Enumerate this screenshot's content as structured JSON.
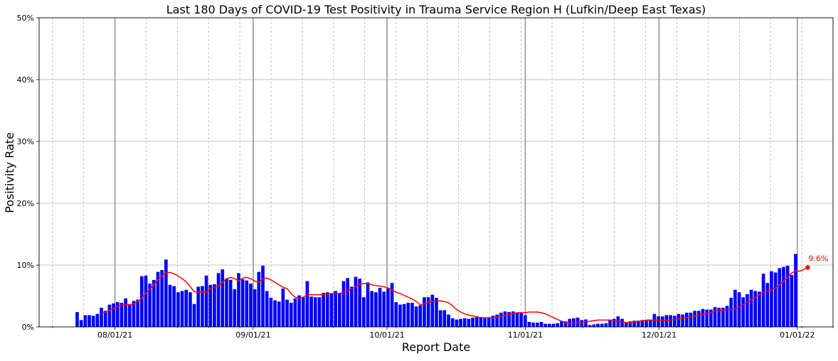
{
  "chart_data": {
    "type": "bar",
    "title": "Last 180 Days of COVID-19 Test Positivity in Trauma Service Region H (Lufkin/Deep East Texas)",
    "xlabel": "Report Date",
    "ylabel": "Positivity Rate",
    "ylim": [
      0,
      50
    ],
    "yticks": [
      0,
      10,
      20,
      30,
      40,
      50
    ],
    "ytick_labels": [
      "0%",
      "10%",
      "20%",
      "30%",
      "40%",
      "50%"
    ],
    "x_start": "2021-07-15",
    "x_end": "2022-01-09",
    "xticks": [
      {
        "date": "2021-08-01",
        "label": "08/01/21"
      },
      {
        "date": "2021-09-01",
        "label": "09/01/21"
      },
      {
        "date": "2021-10-01",
        "label": "10/01/21"
      },
      {
        "date": "2021-11-01",
        "label": "11/01/21"
      },
      {
        "date": "2021-12-01",
        "label": "12/01/21"
      },
      {
        "date": "2022-01-01",
        "label": "01/01/22"
      }
    ],
    "grid": true,
    "series": [
      {
        "type": "bar",
        "color": "#0000ff",
        "values": [
          2.4,
          1.1,
          1.9,
          1.9,
          1.8,
          2.1,
          3.1,
          2.6,
          3.6,
          3.8,
          4.0,
          3.9,
          4.6,
          3.6,
          4.2,
          4.4,
          8.2,
          8.3,
          7.0,
          7.6,
          8.9,
          9.2,
          10.9,
          6.8,
          6.6,
          5.6,
          5.8,
          6.0,
          5.6,
          3.7,
          6.5,
          6.6,
          8.3,
          6.8,
          6.9,
          8.7,
          9.3,
          7.8,
          7.6,
          6.1,
          8.7,
          7.7,
          7.5,
          7.0,
          6.1,
          8.9,
          9.9,
          5.8,
          4.7,
          4.3,
          4.1,
          6.2,
          4.4,
          3.9,
          4.6,
          5.1,
          4.8,
          7.4,
          4.9,
          4.8,
          4.8,
          5.5,
          5.6,
          5.4,
          5.8,
          5.4,
          7.4,
          7.9,
          6.5,
          8.1,
          7.8,
          4.8,
          7.2,
          5.8,
          5.6,
          6.3,
          5.7,
          6.2,
          7.1,
          4.0,
          3.6,
          3.7,
          3.9,
          3.9,
          3.3,
          3.5,
          4.8,
          4.8,
          5.2,
          4.7,
          2.7,
          2.7,
          2.0,
          1.4,
          1.2,
          1.3,
          1.4,
          1.3,
          1.5,
          1.7,
          1.6,
          1.4,
          1.5,
          1.8,
          2.0,
          2.3,
          2.5,
          2.4,
          2.5,
          2.3,
          2.3,
          1.9,
          0.8,
          0.7,
          0.7,
          0.8,
          0.5,
          0.5,
          0.5,
          0.6,
          1.0,
          0.9,
          1.3,
          1.4,
          1.5,
          1.1,
          1.2,
          0.3,
          0.4,
          0.5,
          0.5,
          0.6,
          1.1,
          1.3,
          1.7,
          1.3,
          0.7,
          0.9,
          1.0,
          1.0,
          1.1,
          1.0,
          1.1,
          2.1,
          1.7,
          1.7,
          1.9,
          1.9,
          1.8,
          2.1,
          2.0,
          2.3,
          2.3,
          2.6,
          2.6,
          2.9,
          2.8,
          2.8,
          3.2,
          3.1,
          3.1,
          3.4,
          4.7,
          6.0,
          5.6,
          4.8,
          5.3,
          6.0,
          5.8,
          5.7,
          8.6,
          7.1,
          9.0,
          8.8,
          9.5,
          9.7,
          9.9,
          8.4,
          11.8
        ]
      },
      {
        "type": "line",
        "color": "#ff0000",
        "start_index": 6,
        "values": [
          2.1,
          2.4,
          2.7,
          3.0,
          3.3,
          3.5,
          3.6,
          3.6,
          3.7,
          4.1,
          4.6,
          5.4,
          6.1,
          6.8,
          7.6,
          8.2,
          8.8,
          8.8,
          8.6,
          8.2,
          7.8,
          7.3,
          6.5,
          5.7,
          5.6,
          5.6,
          5.6,
          6.2,
          6.4,
          6.6,
          7.2,
          7.8,
          8.0,
          7.8,
          7.4,
          7.9,
          8.0,
          7.8,
          7.4,
          7.2,
          7.8,
          7.9,
          7.6,
          7.2,
          6.8,
          6.4,
          6.2,
          5.4,
          4.8,
          4.6,
          4.8,
          5.2,
          5.2,
          5.2,
          5.2,
          5.2,
          5.3,
          5.4,
          5.4,
          5.4,
          5.6,
          5.8,
          6.2,
          6.5,
          6.9,
          7.0,
          7.0,
          6.8,
          6.7,
          6.6,
          6.5,
          6.3,
          6.0,
          5.6,
          5.4,
          5.1,
          4.8,
          4.5,
          4.1,
          3.6,
          3.7,
          4.0,
          4.1,
          4.2,
          4.2,
          4.1,
          3.9,
          3.4,
          2.8,
          2.4,
          2.1,
          1.9,
          1.8,
          1.6,
          1.5,
          1.5,
          1.5,
          1.5,
          1.6,
          1.7,
          1.9,
          2.0,
          2.2,
          2.3,
          2.3,
          2.3,
          2.4,
          2.4,
          2.4,
          2.3,
          2.1,
          1.8,
          1.5,
          1.2,
          0.9,
          0.7,
          0.6,
          0.6,
          0.6,
          0.7,
          0.8,
          0.9,
          1.0,
          1.1,
          1.1,
          1.1,
          1.1,
          1.0,
          0.9,
          0.8,
          0.7,
          0.7,
          0.8,
          0.9,
          1.0,
          1.1,
          1.1,
          1.1,
          1.1,
          1.0,
          1.0,
          1.1,
          1.2,
          1.3,
          1.4,
          1.5,
          1.6,
          1.7,
          1.9,
          2.0,
          2.2,
          2.3,
          2.5,
          2.6,
          2.7,
          2.8,
          2.8,
          2.9,
          3.2,
          3.6,
          4.0,
          4.4,
          4.8,
          5.2,
          5.6,
          5.8,
          6.0,
          6.3,
          6.8,
          7.4,
          8.0,
          8.7,
          9.1,
          9.0,
          9.3,
          9.6
        ]
      }
    ],
    "end_label": "9.6%",
    "end_value": 9.6
  }
}
